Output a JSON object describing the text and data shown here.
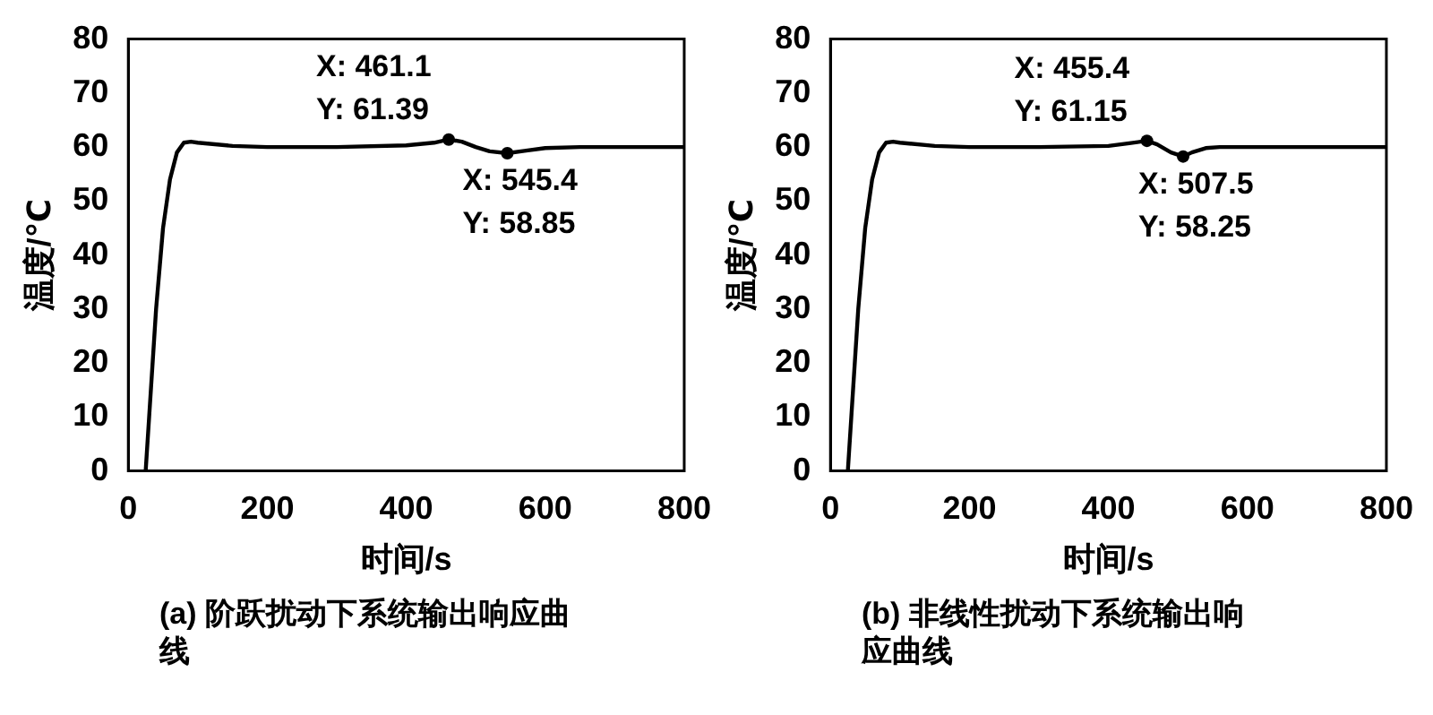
{
  "chart_data": [
    {
      "type": "line",
      "title": "(a) 阶跃扰动下系统输出响应曲线",
      "xlabel": "时间/s",
      "ylabel": "温度/℃",
      "xlim": [
        0,
        800
      ],
      "xticks": [
        0,
        200,
        400,
        600,
        800
      ],
      "ylim": [
        0,
        80
      ],
      "yticks": [
        0,
        10,
        20,
        30,
        40,
        50,
        60,
        70,
        80
      ],
      "grid": false,
      "legend": false,
      "marker": "none",
      "line_style": "solid",
      "series": [
        {
          "color": "#000000",
          "x": [
            25,
            30,
            40,
            50,
            60,
            70,
            80,
            90,
            100,
            150,
            200,
            300,
            400,
            440,
            461.1,
            480,
            500,
            520,
            545.4,
            570,
            600,
            650,
            800
          ],
          "values": [
            0,
            10,
            30,
            45,
            54,
            59,
            60.8,
            61,
            60.8,
            60.2,
            60,
            60,
            60.3,
            60.8,
            61.39,
            61,
            60,
            59.2,
            58.85,
            59.3,
            59.8,
            60,
            60
          ]
        }
      ],
      "annotations": [
        {
          "text": "X: 461.1\nY: 61.39",
          "x": 461.1,
          "y": 61.39
        },
        {
          "text": "X: 545.4\nY: 58.85",
          "x": 545.4,
          "y": 58.85
        }
      ]
    },
    {
      "type": "line",
      "title": "(b) 非线性扰动下系统输出响应曲线",
      "xlabel": "时间/s",
      "ylabel": "温度/℃",
      "xlim": [
        0,
        800
      ],
      "xticks": [
        0,
        200,
        400,
        600,
        800
      ],
      "ylim": [
        0,
        80
      ],
      "yticks": [
        0,
        10,
        20,
        30,
        40,
        50,
        60,
        70,
        80
      ],
      "grid": false,
      "legend": false,
      "marker": "none",
      "line_style": "solid",
      "series": [
        {
          "color": "#000000",
          "x": [
            25,
            30,
            40,
            50,
            60,
            70,
            80,
            90,
            100,
            150,
            200,
            300,
            400,
            430,
            455.4,
            470,
            490,
            507.5,
            520,
            540,
            560,
            800
          ],
          "values": [
            0,
            10,
            30,
            45,
            54,
            59,
            60.8,
            61,
            60.8,
            60.2,
            60,
            60,
            60.2,
            60.7,
            61.15,
            60.5,
            59,
            58.25,
            59,
            59.8,
            60,
            60
          ]
        }
      ],
      "annotations": [
        {
          "text": "X: 455.4\nY: 61.15",
          "x": 455.4,
          "y": 61.15
        },
        {
          "text": "X: 507.5\nY: 58.25",
          "x": 507.5,
          "y": 58.25
        }
      ]
    }
  ]
}
